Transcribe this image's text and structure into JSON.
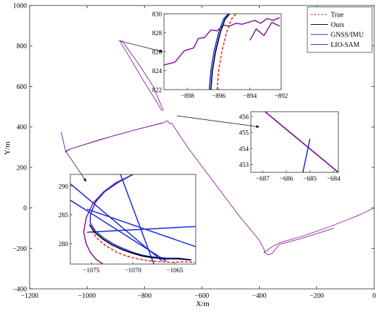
{
  "chart_data": {
    "type": "line",
    "xlabel": "X/m",
    "ylabel": "Y/m",
    "xlim": [
      -1200,
      0
    ],
    "ylim": [
      -400,
      1000
    ],
    "xticks": [
      -1200,
      -1000,
      -800,
      -600,
      -400,
      -200,
      0
    ],
    "yticks": [
      -400,
      -200,
      0,
      200,
      400,
      600,
      800,
      1000
    ],
    "legend_position": "top-right",
    "legend": [
      {
        "name": "True",
        "color": "#e8251f",
        "style": "dashed"
      },
      {
        "name": "Ours",
        "color": "#000000",
        "style": "solid"
      },
      {
        "name": "GNSS/IMU",
        "color": "#1f2de0",
        "style": "solid"
      },
      {
        "name": "LIO-SAM",
        "color": "#8a1a9e",
        "style": "solid"
      }
    ],
    "series": [
      {
        "name": "LIO-SAM",
        "x": [
          -1075,
          -1072,
          -1065,
          -950,
          -820,
          -735,
          -722,
          -716,
          -712,
          -706,
          -650,
          -560,
          -470,
          -400,
          -385,
          -380,
          -370,
          -355,
          -330,
          -250,
          -140
        ],
        "y": [
          278,
          282,
          288,
          340,
          390,
          420,
          430,
          425,
          415,
          420,
          300,
          130,
          -40,
          -160,
          -200,
          -222,
          -232,
          -224,
          -180,
          -150,
          -100
        ]
      },
      {
        "name": "LIO-SAM",
        "x": [
          -740,
          -760,
          -800,
          -850,
          -880,
          -885,
          -878,
          -860,
          -815,
          -770,
          -734
        ],
        "y": [
          480,
          530,
          620,
          740,
          810,
          825,
          825,
          790,
          700,
          600,
          480
        ]
      },
      {
        "name": "LIO-SAM",
        "x": [
          -1077,
          -1060,
          -900,
          -740
        ],
        "y": [
          274,
          290,
          360,
          420
        ]
      },
      {
        "name": "LIO-SAM",
        "x": [
          -385,
          -360,
          -330,
          -250,
          -150,
          -60,
          0
        ],
        "y": [
          -222,
          -196,
          -172,
          -140,
          -90,
          -40,
          0
        ]
      },
      {
        "name": "GNSS/IMU",
        "x": [
          -1090,
          -1075,
          -1072
        ],
        "y": [
          375,
          282,
          278
        ]
      }
    ],
    "insets": [
      {
        "xlim": [
          -899.5,
          -892
        ],
        "ylim": [
          822,
          830
        ],
        "xticks": [
          -898,
          -896,
          -894,
          -892
        ],
        "yticks": [
          822,
          824,
          826,
          828,
          830
        ],
        "series": [
          {
            "name": "LIO-SAM",
            "x": [
              -899.5,
              -898.8,
              -898.2,
              -897.6,
              -897.3,
              -896.9,
              -896.5,
              -896.1,
              -895.7,
              -895.3,
              -894.9,
              -894.5,
              -894.1,
              -893.7,
              -893.3,
              -892.9,
              -892.5,
              -892.1
            ],
            "y": [
              824.6,
              824.9,
              826.1,
              826.4,
              827.4,
              827.5,
              828.3,
              828.2,
              828.8,
              828.7,
              829.0,
              828.9,
              829.1,
              829.3,
              829.0,
              829.5,
              829.3,
              829.6
            ]
          },
          {
            "name": "LIO-SAM",
            "x": [
              -894.0,
              -893.6,
              -893.1,
              -892.6,
              -892.1
            ],
            "y": [
              827.2,
              828.4,
              827.7,
              829.1,
              828.7
            ]
          },
          {
            "name": "GNSS/IMU",
            "x": [
              -896.6,
              -896.5,
              -896.3,
              -896.0,
              -895.7,
              -895.4
            ],
            "y": [
              822,
              824,
              826,
              828,
              829.4,
              830
            ]
          },
          {
            "name": "Ours",
            "x": [
              -896.5,
              -896.4,
              -896.2,
              -895.9,
              -895.6,
              -895.3
            ],
            "y": [
              822,
              824,
              826,
              828,
              829.4,
              830
            ]
          },
          {
            "name": "True",
            "x": [
              -896.1,
              -896.0,
              -895.8,
              -895.5,
              -895.2,
              -894.9
            ],
            "y": [
              822,
              824,
              826,
              828,
              829.4,
              830
            ]
          }
        ]
      },
      {
        "xlim": [
          -687.5,
          -683.8
        ],
        "ylim": [
          452.5,
          456.3
        ],
        "xticks": [
          -687,
          -686,
          -685,
          -684
        ],
        "yticks": [
          453,
          454,
          455,
          456
        ],
        "series": [
          {
            "name": "True",
            "x": [
              -686.9,
              -683.8
            ],
            "y": [
              456.3,
              452.5
            ]
          },
          {
            "name": "Ours",
            "x": [
              -686.9,
              -683.8
            ],
            "y": [
              456.3,
              452.5
            ]
          },
          {
            "name": "LIO-SAM",
            "x": [
              -686.9,
              -683.8
            ],
            "y": [
              456.3,
              452.5
            ]
          },
          {
            "name": "GNSS/IMU",
            "x": [
              -685.0,
              -685.3
            ],
            "y": [
              454.6,
              452.5
            ]
          }
        ]
      },
      {
        "xlim": [
          -1077.5,
          -1062.5
        ],
        "ylim": [
          276.5,
          292
        ],
        "xticks": [
          -1075,
          -1070,
          -1065
        ],
        "yticks": [
          280,
          285,
          290
        ],
        "series": [
          {
            "name": "LIO-SAM",
            "x": [
              -1070,
              -1072,
              -1073.5,
              -1074.8,
              -1075.6,
              -1075.9,
              -1075.6,
              -1075.1,
              -1074.4,
              -1073.6
            ],
            "y": [
              292,
              290.6,
              289,
              287,
              284.5,
              282,
              280,
              278.5,
              277.3,
              276.5
            ]
          },
          {
            "name": "GNSS/IMU",
            "x": [
              -1070,
              -1071.8,
              -1073.4,
              -1074.5,
              -1075.1,
              -1075.1,
              -1074.5,
              -1073.5,
              -1072.4,
              -1071.2,
              -1070.0,
              -1068.8,
              -1067.5,
              -1066.0,
              -1064.5,
              -1063.0
            ],
            "y": [
              292,
              290.6,
              289,
              287.2,
              285,
              283.6,
              282.2,
              281,
              280,
              279.2,
              278.5,
              278.0,
              277.7,
              277.5,
              277.5,
              277.2
            ]
          },
          {
            "name": "GNSS/IMU",
            "x": [
              -1078,
              -1066.5
            ],
            "y": [
              291,
              277
            ]
          },
          {
            "name": "GNSS/IMU",
            "x": [
              -1078,
              -1066
            ],
            "y": [
              288,
              277
            ]
          },
          {
            "name": "GNSS/IMU",
            "x": [
              -1071.5,
              -1067.5
            ],
            "y": [
              292,
              276.5
            ]
          },
          {
            "name": "GNSS/IMU",
            "x": [
              -1075.5,
              -1062.5
            ],
            "y": [
              286,
              279.5
            ]
          },
          {
            "name": "GNSS/IMU",
            "x": [
              -1075.5,
              -1062.5
            ],
            "y": [
              282,
              283
            ]
          },
          {
            "name": "Ours",
            "x": [
              -1075.2,
              -1074.6,
              -1073.6,
              -1072.5,
              -1071.3,
              -1070.1,
              -1068.9,
              -1067.6,
              -1066.1,
              -1064.6,
              -1063.1
            ],
            "y": [
              283.3,
              282.0,
              280.8,
              279.8,
              279.0,
              278.4,
              277.9,
              277.6,
              277.4,
              277.4,
              277.2
            ]
          },
          {
            "name": "True",
            "x": [
              -1075.0,
              -1074.2,
              -1073.2,
              -1072.0,
              -1070.8,
              -1069.5,
              -1068.2,
              -1066.8,
              -1065.4,
              -1063.9,
              -1062.6
            ],
            "y": [
              282.2,
              280.8,
              279.6,
              278.6,
              277.9,
              277.4,
              277.1,
              276.9,
              276.8,
              276.9,
              276.8
            ]
          }
        ]
      }
    ]
  }
}
